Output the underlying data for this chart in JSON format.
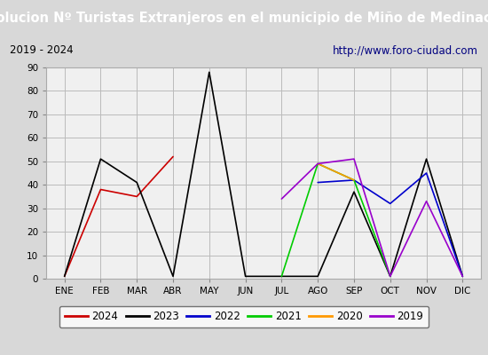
{
  "title": "Evolucion Nº Turistas Extranjeros en el municipio de Miño de Medinaceli",
  "subtitle_left": "2019 - 2024",
  "subtitle_right": "http://www.foro-ciudad.com",
  "months": [
    "ENE",
    "FEB",
    "MAR",
    "ABR",
    "MAY",
    "JUN",
    "JUL",
    "AGO",
    "SEP",
    "OCT",
    "NOV",
    "DIC"
  ],
  "ylim": [
    0,
    90
  ],
  "yticks": [
    0,
    10,
    20,
    30,
    40,
    50,
    60,
    70,
    80,
    90
  ],
  "series": {
    "2024": {
      "color": "#cc0000",
      "data": [
        1,
        38,
        35,
        52,
        null,
        null,
        null,
        null,
        null,
        null,
        null,
        null
      ]
    },
    "2023": {
      "color": "#000000",
      "data": [
        1,
        51,
        41,
        1,
        88,
        1,
        1,
        1,
        37,
        1,
        51,
        1
      ]
    },
    "2022": {
      "color": "#0000cc",
      "data": [
        null,
        null,
        null,
        null,
        null,
        null,
        null,
        41,
        42,
        32,
        45,
        1
      ]
    },
    "2021": {
      "color": "#00cc00",
      "data": [
        null,
        null,
        null,
        null,
        null,
        null,
        1,
        49,
        42,
        1,
        null,
        null
      ]
    },
    "2020": {
      "color": "#ff9900",
      "data": [
        null,
        null,
        null,
        null,
        null,
        null,
        null,
        49,
        42,
        null,
        null,
        null
      ]
    },
    "2019": {
      "color": "#9900cc",
      "data": [
        null,
        null,
        null,
        null,
        null,
        null,
        34,
        49,
        51,
        1,
        33,
        1
      ]
    }
  },
  "title_bg": "#4472a8",
  "title_color": "#ffffff",
  "subtitle_bg": "#d8d8d8",
  "plot_bg": "#d8d8d8",
  "inner_bg": "#f0f0f0",
  "grid_color": "#bbbbbb",
  "outer_bg": "#d8d8d8",
  "title_fontsize": 10.5,
  "subtitle_fontsize": 8.5,
  "axis_fontsize": 7.5,
  "legend_order": [
    "2024",
    "2023",
    "2022",
    "2021",
    "2020",
    "2019"
  ]
}
